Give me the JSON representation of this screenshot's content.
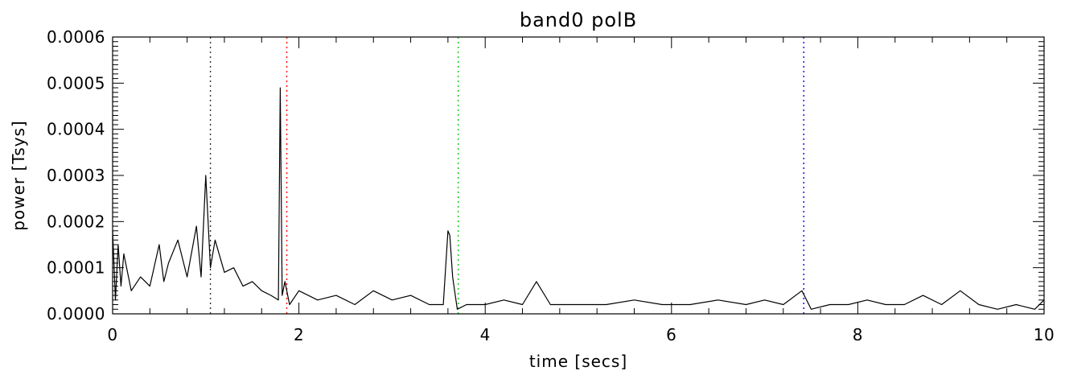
{
  "chart_data": {
    "type": "line",
    "title": "band0 polB",
    "xlabel": "time [secs]",
    "ylabel": "power [Tsys]",
    "xlim": [
      0,
      10
    ],
    "ylim": [
      0,
      0.0006
    ],
    "x_ticks": [
      0,
      2,
      4,
      6,
      8,
      10
    ],
    "x_tick_labels": [
      "0",
      "2",
      "4",
      "6",
      "8",
      "10"
    ],
    "y_ticks": [
      0,
      0.0001,
      0.0002,
      0.0003,
      0.0004,
      0.0005,
      0.0006
    ],
    "y_tick_labels": [
      "0.0000",
      "0.0001",
      "0.0002",
      "0.0003",
      "0.0004",
      "0.0005",
      "0.0006"
    ],
    "grid": false,
    "series": [
      {
        "color": "#000000",
        "x": [
          0.0,
          0.03,
          0.06,
          0.09,
          0.12,
          0.2,
          0.3,
          0.4,
          0.5,
          0.55,
          0.6,
          0.7,
          0.8,
          0.9,
          0.95,
          1.0,
          1.05,
          1.1,
          1.2,
          1.3,
          1.4,
          1.5,
          1.6,
          1.7,
          1.78,
          1.8,
          1.82,
          1.85,
          1.9,
          2.0,
          2.2,
          2.4,
          2.6,
          2.8,
          3.0,
          3.2,
          3.4,
          3.55,
          3.6,
          3.62,
          3.65,
          3.7,
          3.8,
          4.0,
          4.2,
          4.4,
          4.55,
          4.7,
          5.0,
          5.3,
          5.6,
          5.9,
          6.2,
          6.5,
          6.8,
          7.0,
          7.2,
          7.4,
          7.5,
          7.7,
          7.9,
          8.1,
          8.3,
          8.5,
          8.7,
          8.9,
          9.1,
          9.3,
          9.5,
          9.7,
          9.9,
          10.0
        ],
        "y": [
          0.00018,
          3e-05,
          0.00015,
          6e-05,
          0.00013,
          5e-05,
          8e-05,
          6e-05,
          0.00015,
          7e-05,
          0.00011,
          0.00016,
          8e-05,
          0.00019,
          8e-05,
          0.0003,
          0.0001,
          0.00016,
          9e-05,
          0.0001,
          6e-05,
          7e-05,
          5e-05,
          4e-05,
          3e-05,
          0.00049,
          4e-05,
          7e-05,
          2e-05,
          5e-05,
          3e-05,
          4e-05,
          2e-05,
          5e-05,
          3e-05,
          4e-05,
          2e-05,
          2e-05,
          0.00018,
          0.00017,
          8e-05,
          1e-05,
          2e-05,
          2e-05,
          3e-05,
          2e-05,
          7e-05,
          2e-05,
          2e-05,
          2e-05,
          3e-05,
          2e-05,
          2e-05,
          3e-05,
          2e-05,
          3e-05,
          2e-05,
          5e-05,
          1e-05,
          2e-05,
          2e-05,
          3e-05,
          2e-05,
          2e-05,
          4e-05,
          2e-05,
          5e-05,
          2e-05,
          1e-05,
          2e-05,
          1e-05,
          3e-05
        ]
      }
    ],
    "markers": [
      {
        "x": 1.05,
        "color": "#333333"
      },
      {
        "x": 1.87,
        "color": "#ff0000"
      },
      {
        "x": 3.71,
        "color": "#00cc00"
      },
      {
        "x": 7.42,
        "color": "#0000ff"
      }
    ]
  }
}
